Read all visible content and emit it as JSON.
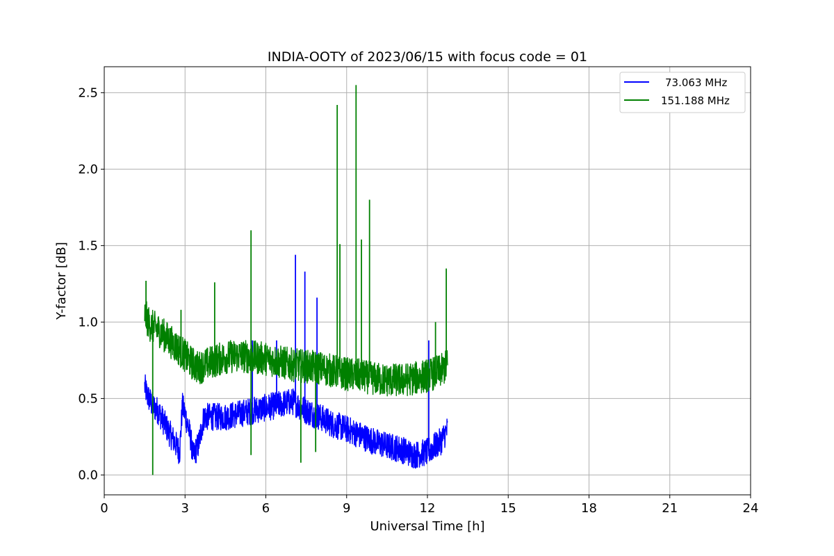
{
  "chart_data": {
    "type": "line",
    "title": "INDIA-OOTY of 2023/06/15 with focus code = 01",
    "xlabel": "Universal Time [h]",
    "ylabel": "Y-factor [dB]",
    "xlim": [
      0,
      24
    ],
    "ylim": [
      -0.13,
      2.67
    ],
    "xticks": [
      0,
      3,
      6,
      9,
      12,
      15,
      18,
      21,
      24
    ],
    "xtick_labels": [
      "0",
      "3",
      "6",
      "9",
      "12",
      "15",
      "18",
      "21",
      "24"
    ],
    "yticks": [
      0.0,
      0.5,
      1.0,
      1.5,
      2.0,
      2.5
    ],
    "ytick_labels": [
      "0.0",
      "0.5",
      "1.0",
      "1.5",
      "2.0",
      "2.5"
    ],
    "grid": true,
    "legend_position": "top-right",
    "series": [
      {
        "name": "73.063 MHz",
        "color": "#0000ff",
        "x": [
          1.5,
          1.6,
          1.8,
          2.0,
          2.2,
          2.4,
          2.6,
          2.8,
          2.9,
          3.0,
          3.2,
          3.3,
          3.5,
          3.7,
          4.0,
          4.5,
          5.0,
          5.5,
          6.0,
          6.5,
          7.0,
          7.5,
          8.0,
          8.5,
          9.0,
          9.5,
          10.0,
          10.5,
          11.0,
          11.5,
          12.0,
          12.5,
          12.75
        ],
        "y": [
          0.58,
          0.52,
          0.45,
          0.42,
          0.35,
          0.28,
          0.22,
          0.15,
          0.45,
          0.4,
          0.25,
          0.12,
          0.2,
          0.38,
          0.38,
          0.38,
          0.4,
          0.42,
          0.44,
          0.46,
          0.48,
          0.42,
          0.38,
          0.33,
          0.3,
          0.26,
          0.22,
          0.19,
          0.17,
          0.13,
          0.15,
          0.22,
          0.3
        ],
        "spikes": [
          {
            "x": 5.5,
            "y": 0.88
          },
          {
            "x": 6.4,
            "y": 0.88
          },
          {
            "x": 7.1,
            "y": 1.44
          },
          {
            "x": 7.45,
            "y": 1.33
          },
          {
            "x": 7.9,
            "y": 1.16
          },
          {
            "x": 12.05,
            "y": 0.88
          }
        ]
      },
      {
        "name": "151.188 MHz",
        "color": "#008000",
        "x": [
          1.5,
          1.7,
          2.0,
          2.3,
          2.6,
          2.9,
          3.2,
          3.5,
          4.0,
          4.5,
          5.0,
          5.5,
          6.0,
          6.5,
          7.0,
          7.5,
          8.0,
          8.5,
          9.0,
          9.5,
          10.0,
          10.5,
          11.0,
          11.5,
          12.0,
          12.5,
          12.75
        ],
        "y": [
          1.05,
          0.98,
          0.95,
          0.9,
          0.85,
          0.8,
          0.74,
          0.7,
          0.74,
          0.77,
          0.78,
          0.77,
          0.76,
          0.74,
          0.72,
          0.71,
          0.7,
          0.68,
          0.66,
          0.65,
          0.63,
          0.62,
          0.62,
          0.63,
          0.65,
          0.68,
          0.72
        ],
        "spikes": [
          {
            "x": 1.55,
            "y": 1.27
          },
          {
            "x": 1.8,
            "y": 0.0
          },
          {
            "x": 2.85,
            "y": 1.08
          },
          {
            "x": 4.1,
            "y": 1.26
          },
          {
            "x": 5.45,
            "y": 1.6
          },
          {
            "x": 5.45,
            "y": 0.13
          },
          {
            "x": 7.3,
            "y": 0.08
          },
          {
            "x": 7.85,
            "y": 0.15
          },
          {
            "x": 8.65,
            "y": 2.42
          },
          {
            "x": 8.75,
            "y": 1.51
          },
          {
            "x": 9.35,
            "y": 2.55
          },
          {
            "x": 9.55,
            "y": 1.54
          },
          {
            "x": 9.85,
            "y": 1.8
          },
          {
            "x": 12.3,
            "y": 1.0
          },
          {
            "x": 12.7,
            "y": 1.35
          }
        ]
      }
    ]
  }
}
